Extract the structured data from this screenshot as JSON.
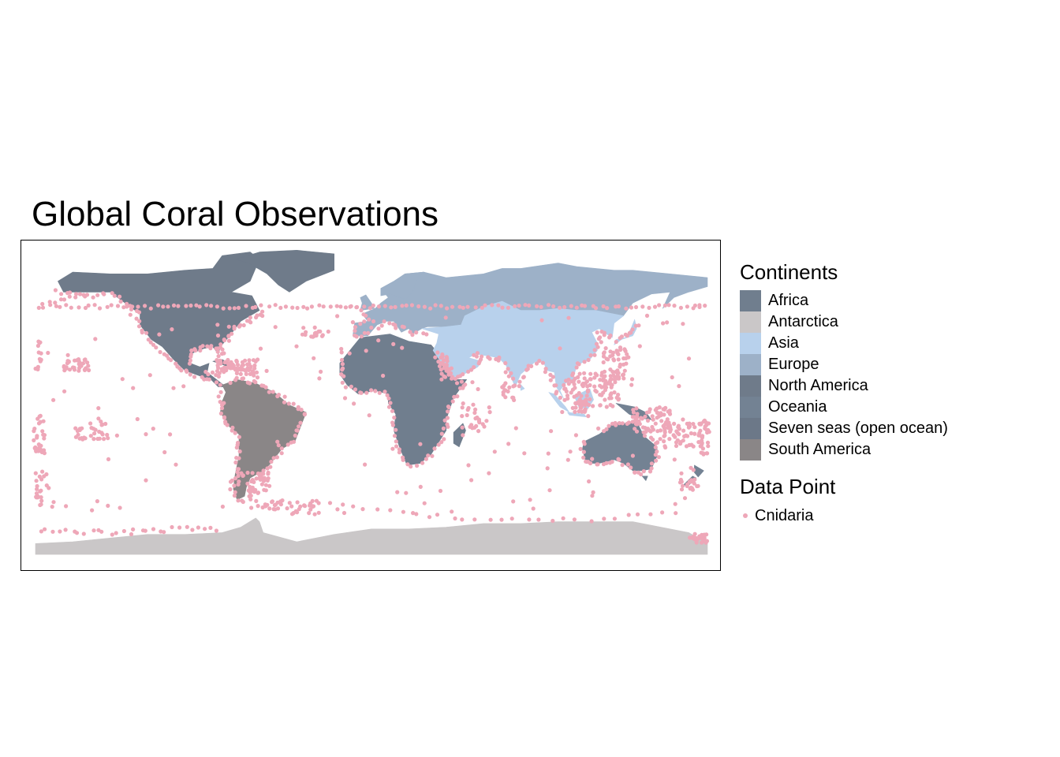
{
  "title": "Global Coral Observations",
  "legend": {
    "continents_title": "Continents",
    "continents": [
      {
        "name": "Africa",
        "color": "#707e8e"
      },
      {
        "name": "Antarctica",
        "color": "#cac7c8"
      },
      {
        "name": "Asia",
        "color": "#b8d1ec"
      },
      {
        "name": "Europe",
        "color": "#9db1c8"
      },
      {
        "name": "North America",
        "color": "#6f7b8a"
      },
      {
        "name": "Oceania",
        "color": "#738293"
      },
      {
        "name": "Seven seas (open ocean)",
        "color": "#6c7888"
      },
      {
        "name": "South America",
        "color": "#8a8687"
      }
    ],
    "points_title": "Data Point",
    "points": [
      {
        "name": "Cnidaria",
        "color": "#eea7b8"
      }
    ]
  },
  "map": {
    "projection": "equirectangular",
    "lon_range": [
      -180,
      180
    ],
    "lat_range": [
      -90,
      84
    ],
    "ocean_color": "#ffffff",
    "point_color": "#eea7b8"
  }
}
